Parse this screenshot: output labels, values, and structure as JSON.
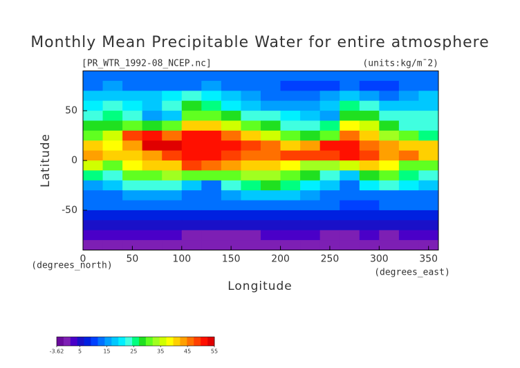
{
  "chart_data": {
    "type": "heatmap",
    "title": "Monthly Mean Precipitable Water for entire atmosphere",
    "subtitle": "[PR_WTR_1992-08_NCEP.nc]",
    "units": "(units:kg/m¯2)",
    "x_label": "Longitude",
    "y_label": "Latitude",
    "x_unit": "(degrees_east)",
    "y_unit": "(degrees_north)",
    "xlim": [
      0,
      360
    ],
    "ylim": [
      -90,
      90
    ],
    "xticks": [
      0,
      50,
      100,
      150,
      200,
      250,
      300,
      350
    ],
    "yticks": [
      -50,
      0,
      50
    ],
    "x": [
      10,
      30,
      50,
      70,
      90,
      110,
      130,
      150,
      170,
      190,
      210,
      230,
      250,
      270,
      290,
      310,
      330,
      350
    ],
    "y": [
      85,
      75,
      65,
      55,
      45,
      35,
      25,
      15,
      5,
      -5,
      -15,
      -25,
      -35,
      -45,
      -55,
      -65,
      -75,
      -85
    ],
    "z": [
      [
        12,
        12,
        12,
        12,
        12,
        12,
        12,
        12,
        12,
        12,
        12,
        12,
        12,
        12,
        12,
        12,
        12,
        12
      ],
      [
        14,
        15,
        14,
        12,
        13,
        14,
        15,
        14,
        13,
        12,
        11,
        10,
        10,
        12,
        10,
        10,
        12,
        14
      ],
      [
        18,
        19,
        18,
        17,
        20,
        22,
        20,
        18,
        16,
        14,
        14,
        14,
        16,
        18,
        15,
        14,
        15,
        17
      ],
      [
        20,
        22,
        20,
        18,
        22,
        28,
        26,
        20,
        17,
        16,
        16,
        15,
        18,
        26,
        22,
        18,
        17,
        18
      ],
      [
        24,
        26,
        22,
        15,
        18,
        30,
        32,
        28,
        24,
        22,
        20,
        18,
        16,
        28,
        28,
        24,
        22,
        22
      ],
      [
        28,
        28,
        30,
        28,
        30,
        42,
        42,
        36,
        32,
        28,
        24,
        22,
        25,
        38,
        36,
        28,
        24,
        22
      ],
      [
        32,
        36,
        48,
        50,
        45,
        50,
        50,
        46,
        42,
        36,
        30,
        28,
        32,
        46,
        42,
        34,
        32,
        26
      ],
      [
        40,
        38,
        44,
        54,
        54,
        52,
        52,
        50,
        48,
        46,
        40,
        44,
        50,
        52,
        46,
        44,
        42,
        42
      ],
      [
        44,
        40,
        40,
        44,
        48,
        50,
        50,
        48,
        46,
        46,
        48,
        48,
        48,
        50,
        48,
        44,
        46,
        42
      ],
      [
        36,
        32,
        38,
        40,
        42,
        48,
        46,
        44,
        42,
        40,
        38,
        34,
        34,
        36,
        42,
        38,
        32,
        30
      ],
      [
        26,
        22,
        30,
        32,
        34,
        32,
        30,
        32,
        34,
        34,
        32,
        28,
        24,
        18,
        28,
        30,
        26,
        24
      ],
      [
        16,
        18,
        22,
        24,
        22,
        18,
        14,
        22,
        26,
        28,
        26,
        20,
        18,
        14,
        20,
        22,
        20,
        18
      ],
      [
        14,
        14,
        16,
        16,
        16,
        14,
        14,
        16,
        18,
        18,
        18,
        16,
        14,
        12,
        14,
        14,
        14,
        14
      ],
      [
        12,
        12,
        12,
        12,
        12,
        12,
        12,
        12,
        12,
        12,
        12,
        12,
        12,
        10,
        10,
        12,
        12,
        12
      ],
      [
        9,
        9,
        9,
        9,
        9,
        9,
        9,
        9,
        9,
        9,
        9,
        9,
        9,
        9,
        9,
        9,
        9,
        9
      ],
      [
        6,
        6,
        6,
        6,
        6,
        6,
        6,
        6,
        6,
        6,
        6,
        6,
        6,
        6,
        6,
        6,
        6,
        6
      ],
      [
        2,
        2,
        2,
        2,
        2,
        1,
        1,
        1,
        1,
        2,
        2,
        2,
        1,
        1,
        2,
        1,
        2,
        2
      ],
      [
        0,
        0,
        0,
        0,
        0,
        0,
        0,
        0,
        0,
        0,
        0,
        0,
        0,
        0,
        0,
        0,
        0,
        0
      ]
    ],
    "clim": [
      -3.62,
      55
    ],
    "colorbar_ticks": [
      -3.62,
      5,
      15,
      25,
      35,
      45,
      55
    ],
    "colormap": [
      "#6a0a9c",
      "#7d1fb4",
      "#4a00c8",
      "#1a10c8",
      "#0020e0",
      "#0040ff",
      "#0070ff",
      "#00a0ff",
      "#00c8ff",
      "#00f0ff",
      "#40ffe0",
      "#00ff80",
      "#20e020",
      "#60ff20",
      "#a0ff20",
      "#d0ff00",
      "#ffff00",
      "#ffd000",
      "#ffa000",
      "#ff7000",
      "#ff4000",
      "#ff1000",
      "#e00000"
    ]
  }
}
